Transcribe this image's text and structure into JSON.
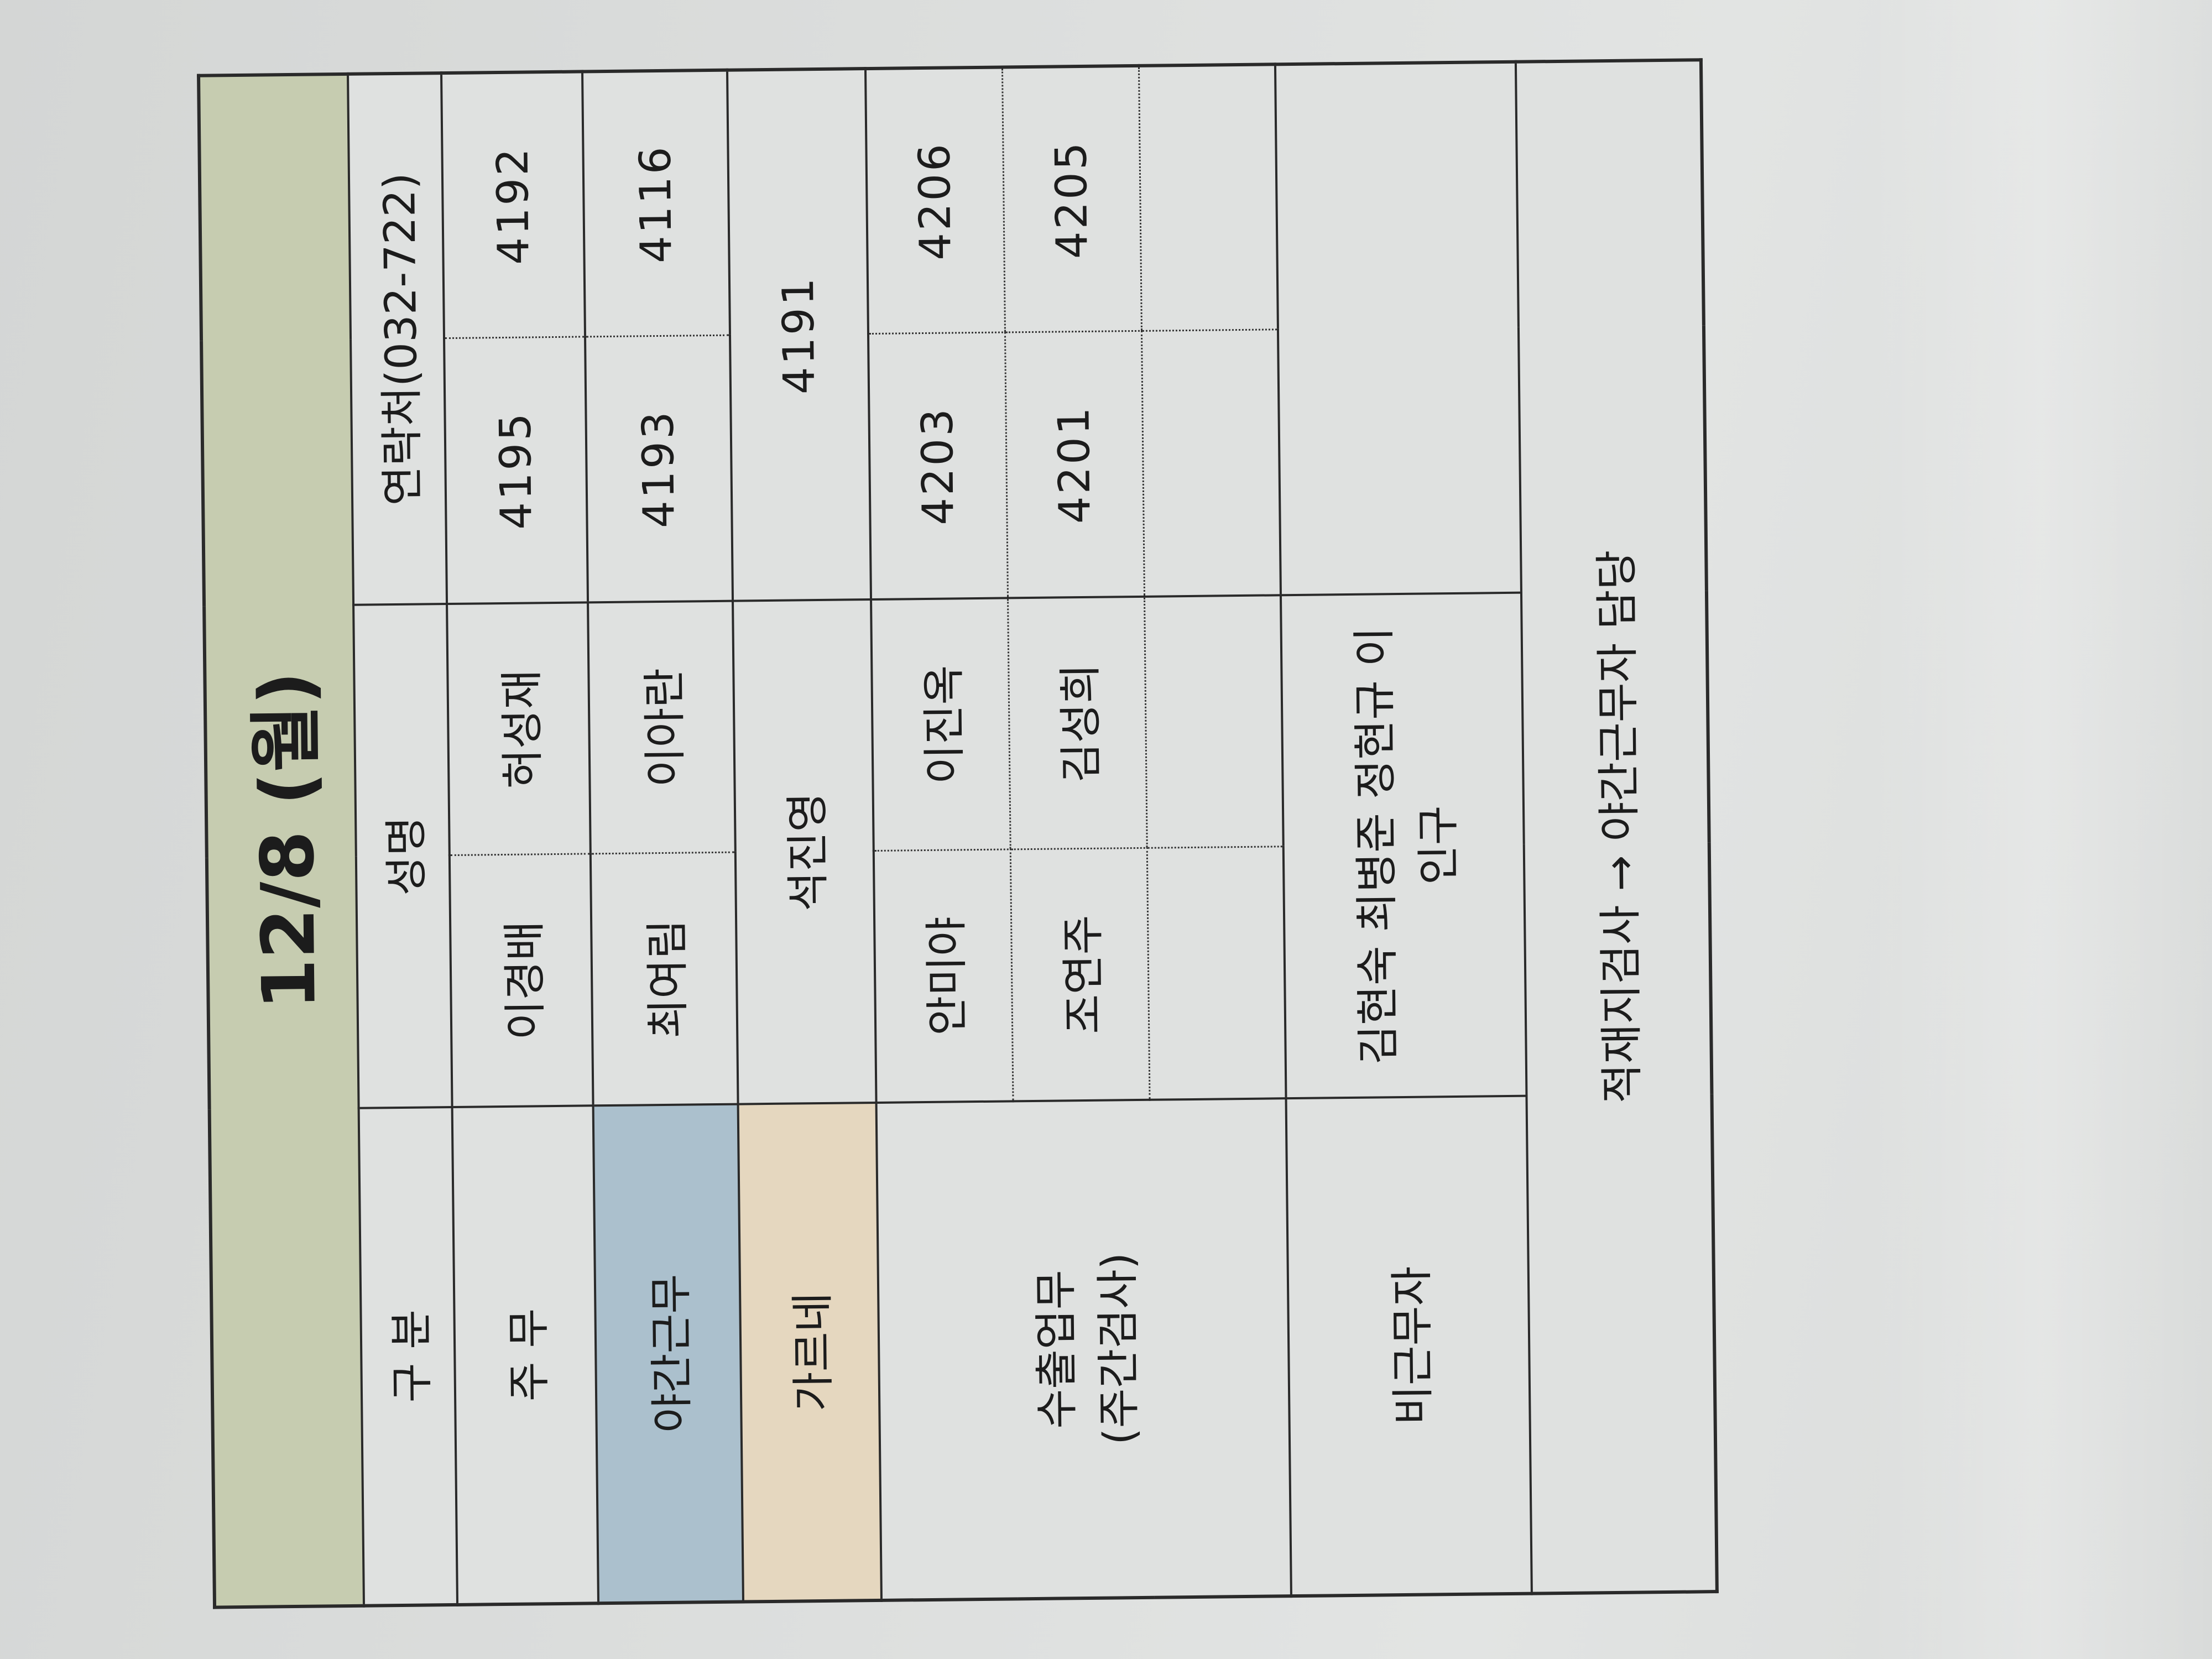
{
  "title": "12/8 (월)",
  "header": {
    "category": "구 분",
    "name": "성명",
    "contact": "연락처(032-722)"
  },
  "rows": {
    "main_duty": {
      "label": "주 무",
      "names": [
        "이경배",
        "허성재"
      ],
      "extensions": [
        "4195",
        "4192"
      ]
    },
    "night_shift": {
      "label": "야간근무",
      "names": [
        "최여림",
        "이아란"
      ],
      "extensions": [
        "4193",
        "4116"
      ],
      "color": "#abc0cd"
    },
    "garne": {
      "label": "가르네",
      "name": "석진영",
      "extension": "4191",
      "color": "#e5d7bf"
    },
    "export": {
      "label_line1": "수출업무",
      "label_line2": "(주간검사)",
      "rows": [
        {
          "names": [
            "안미야",
            "이진옥"
          ],
          "extensions": [
            "4203",
            "4206"
          ]
        },
        {
          "names": [
            "조연주",
            "김성희"
          ],
          "extensions": [
            "4201",
            "4205"
          ]
        }
      ]
    },
    "off_duty": {
      "label": "비근무자",
      "names_line1": "김현숙 최병준 정현규 이",
      "names_line2": "인구"
    }
  },
  "footer": "적재지검사 → 야간근무자 담당",
  "colors": {
    "title_bg": "#c6ccb0",
    "paper": "#dfe1e0"
  }
}
